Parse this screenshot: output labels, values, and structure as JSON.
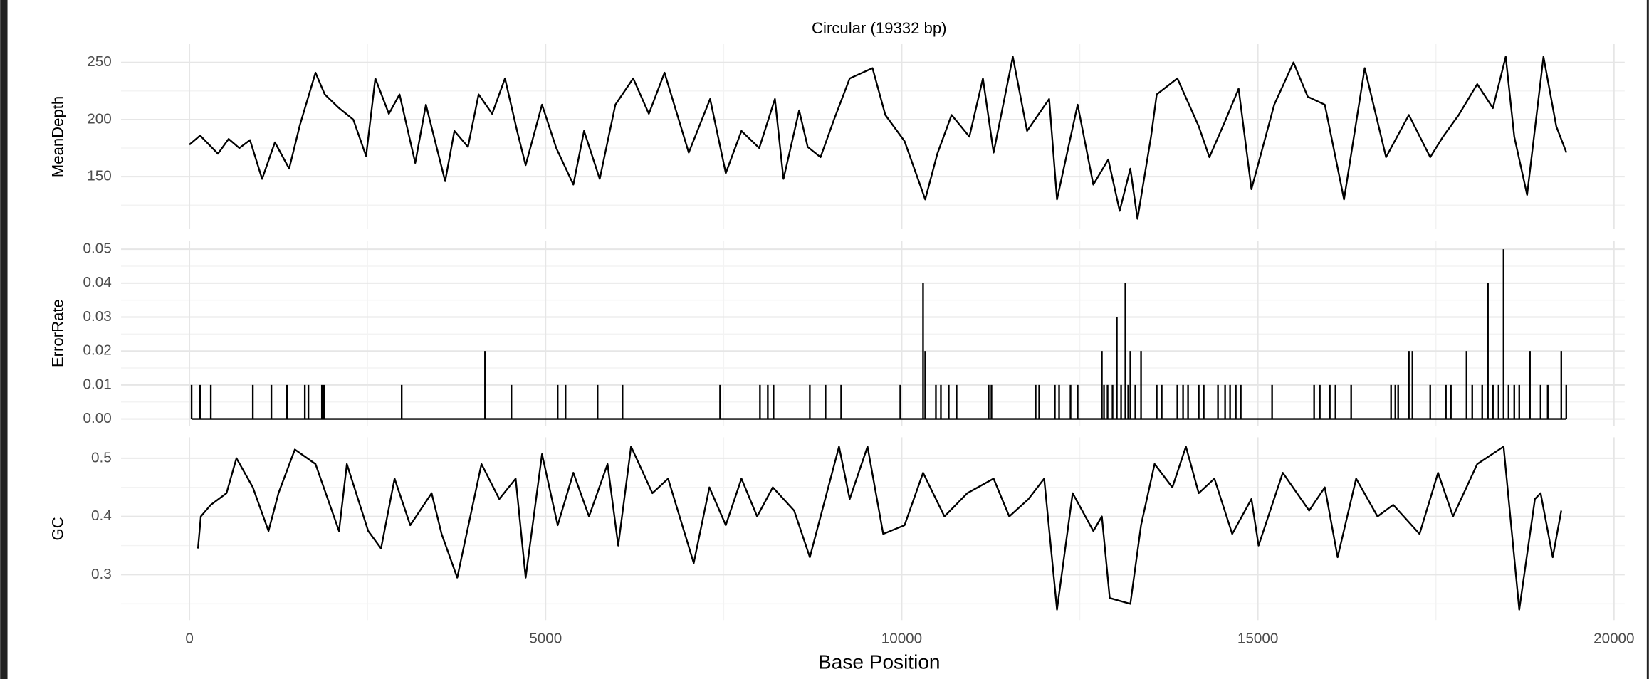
{
  "title": "Circular (19332 bp)",
  "x_label": "Base Position",
  "chart_data": [
    {
      "type": "line",
      "y_label": "MeanDepth",
      "color": "#000000",
      "grid": true,
      "xlim": [
        -960,
        20150
      ],
      "xticks": [
        0,
        5000,
        10000,
        15000,
        20000
      ],
      "ylim": [
        104,
        266
      ],
      "yticks": [
        150,
        200,
        250
      ],
      "x": [
        0,
        150,
        400,
        550,
        700,
        850,
        1020,
        1200,
        1400,
        1550,
        1770,
        1900,
        2100,
        2300,
        2480,
        2610,
        2800,
        2950,
        3170,
        3320,
        3590,
        3720,
        3910,
        4060,
        4250,
        4430,
        4600,
        4720,
        4950,
        5150,
        5390,
        5540,
        5760,
        5980,
        6230,
        6450,
        6670,
        7010,
        7310,
        7530,
        7750,
        8000,
        8220,
        8340,
        8560,
        8680,
        8860,
        9050,
        9270,
        9590,
        9770,
        10040,
        10330,
        10500,
        10700,
        10950,
        11140,
        11290,
        11560,
        11760,
        12070,
        12180,
        12470,
        12690,
        12900,
        13060,
        13210,
        13310,
        13500,
        13580,
        13870,
        14170,
        14320,
        14550,
        14730,
        14910,
        15230,
        15500,
        15700,
        15940,
        16210,
        16500,
        16800,
        17120,
        17420,
        17600,
        17820,
        18080,
        18300,
        18480,
        18600,
        18780,
        19010,
        19190,
        19332
      ],
      "values": [
        178,
        186,
        170,
        183,
        175,
        182,
        148,
        180,
        157,
        195,
        241,
        222,
        210,
        200,
        168,
        236,
        205,
        222,
        162,
        213,
        146,
        190,
        176,
        222,
        205,
        236,
        190,
        160,
        213,
        175,
        143,
        190,
        148,
        213,
        236,
        205,
        241,
        171,
        218,
        153,
        190,
        175,
        218,
        148,
        208,
        176,
        167,
        200,
        236,
        245,
        204,
        181,
        130,
        170,
        204,
        185,
        236,
        171,
        255,
        190,
        218,
        130,
        213,
        143,
        165,
        120,
        157,
        113,
        185,
        222,
        236,
        194,
        167,
        200,
        227,
        139,
        213,
        250,
        220,
        213,
        130,
        245,
        167,
        204,
        167,
        185,
        204,
        231,
        210,
        255,
        185,
        134,
        255,
        194,
        171
      ]
    },
    {
      "type": "spike",
      "y_label": "ErrorRate",
      "color": "#000000",
      "grid": true,
      "xlim": [
        -960,
        20150
      ],
      "xticks": [
        0,
        5000,
        10000,
        15000,
        20000
      ],
      "ylim": [
        -0.002,
        0.0525
      ],
      "yticks": [
        {
          "value": 0,
          "label": "0.00"
        },
        {
          "value": 0.01,
          "label": "0.01"
        },
        {
          "value": 0.02,
          "label": "0.02"
        },
        {
          "value": 0.03,
          "label": "0.03"
        },
        {
          "value": 0.04,
          "label": "0.04"
        },
        {
          "value": 0.05,
          "label": "0.05"
        }
      ],
      "x": [
        30,
        150,
        300,
        890,
        1150,
        1370,
        1620,
        1670,
        1860,
        1890,
        2980,
        4150,
        4520,
        5170,
        5280,
        5730,
        6080,
        7450,
        8010,
        8120,
        8200,
        8710,
        8930,
        9150,
        9980,
        10300,
        10330,
        10480,
        10550,
        10660,
        10770,
        11220,
        11260,
        11880,
        11930,
        12150,
        12210,
        12370,
        12470,
        12810,
        12840,
        12890,
        12960,
        13020,
        13080,
        13140,
        13180,
        13210,
        13280,
        13360,
        13580,
        13650,
        13870,
        13950,
        14020,
        14170,
        14240,
        14440,
        14540,
        14610,
        14690,
        14760,
        15200,
        15790,
        15870,
        16010,
        16090,
        16310,
        16870,
        16930,
        16970,
        17120,
        17170,
        17420,
        17640,
        17710,
        17930,
        18010,
        18150,
        18230,
        18300,
        18380,
        18450,
        18520,
        18600,
        18670,
        18820,
        18970,
        19070,
        19260,
        19330
      ],
      "values": [
        0.01,
        0.01,
        0.01,
        0.01,
        0.01,
        0.01,
        0.01,
        0.01,
        0.01,
        0.01,
        0.01,
        0.02,
        0.01,
        0.01,
        0.01,
        0.01,
        0.01,
        0.01,
        0.01,
        0.01,
        0.01,
        0.01,
        0.01,
        0.01,
        0.01,
        0.04,
        0.02,
        0.01,
        0.01,
        0.01,
        0.01,
        0.01,
        0.01,
        0.01,
        0.01,
        0.01,
        0.01,
        0.01,
        0.01,
        0.02,
        0.01,
        0.01,
        0.01,
        0.03,
        0.01,
        0.04,
        0.01,
        0.02,
        0.01,
        0.02,
        0.01,
        0.01,
        0.01,
        0.01,
        0.01,
        0.01,
        0.01,
        0.01,
        0.01,
        0.01,
        0.01,
        0.01,
        0.01,
        0.01,
        0.01,
        0.01,
        0.01,
        0.01,
        0.01,
        0.01,
        0.01,
        0.02,
        0.02,
        0.01,
        0.01,
        0.01,
        0.02,
        0.01,
        0.01,
        0.04,
        0.01,
        0.01,
        0.05,
        0.01,
        0.01,
        0.01,
        0.02,
        0.01,
        0.01,
        0.02,
        0.01
      ]
    },
    {
      "type": "line",
      "y_label": "GC",
      "color": "#000000",
      "grid": true,
      "xlim": [
        -960,
        20150
      ],
      "xticks": [
        0,
        5000,
        10000,
        15000,
        20000
      ],
      "ylim": [
        0.222,
        0.536
      ],
      "yticks": [
        0.3,
        0.4,
        0.5
      ],
      "x": [
        120,
        160,
        300,
        520,
        660,
        890,
        1110,
        1250,
        1480,
        1770,
        2100,
        2210,
        2510,
        2690,
        2880,
        3100,
        3400,
        3540,
        3760,
        4100,
        4350,
        4580,
        4720,
        4950,
        5170,
        5390,
        5610,
        5870,
        6020,
        6200,
        6500,
        6720,
        7080,
        7300,
        7530,
        7750,
        7970,
        8190,
        8490,
        8710,
        9120,
        9270,
        9520,
        9740,
        10040,
        10300,
        10600,
        10920,
        11290,
        11510,
        11780,
        12000,
        12180,
        12400,
        12690,
        12810,
        12920,
        13210,
        13360,
        13550,
        13800,
        13990,
        14170,
        14390,
        14640,
        14910,
        15010,
        15350,
        15720,
        15940,
        16120,
        16380,
        16680,
        16900,
        17270,
        17530,
        17740,
        18080,
        18450,
        18670,
        18890,
        18970,
        19140,
        19260
      ],
      "values": [
        0.345,
        0.4,
        0.42,
        0.44,
        0.5,
        0.45,
        0.375,
        0.44,
        0.515,
        0.49,
        0.375,
        0.49,
        0.375,
        0.345,
        0.465,
        0.385,
        0.44,
        0.37,
        0.295,
        0.49,
        0.43,
        0.465,
        0.295,
        0.507,
        0.385,
        0.475,
        0.4,
        0.49,
        0.35,
        0.52,
        0.44,
        0.465,
        0.32,
        0.45,
        0.385,
        0.465,
        0.4,
        0.45,
        0.41,
        0.33,
        0.52,
        0.43,
        0.52,
        0.37,
        0.385,
        0.475,
        0.4,
        0.44,
        0.465,
        0.4,
        0.43,
        0.465,
        0.24,
        0.44,
        0.375,
        0.4,
        0.26,
        0.25,
        0.385,
        0.49,
        0.45,
        0.52,
        0.44,
        0.465,
        0.37,
        0.43,
        0.35,
        0.475,
        0.41,
        0.45,
        0.33,
        0.465,
        0.4,
        0.42,
        0.37,
        0.475,
        0.4,
        0.49,
        0.52,
        0.24,
        0.43,
        0.44,
        0.33,
        0.41
      ]
    }
  ]
}
